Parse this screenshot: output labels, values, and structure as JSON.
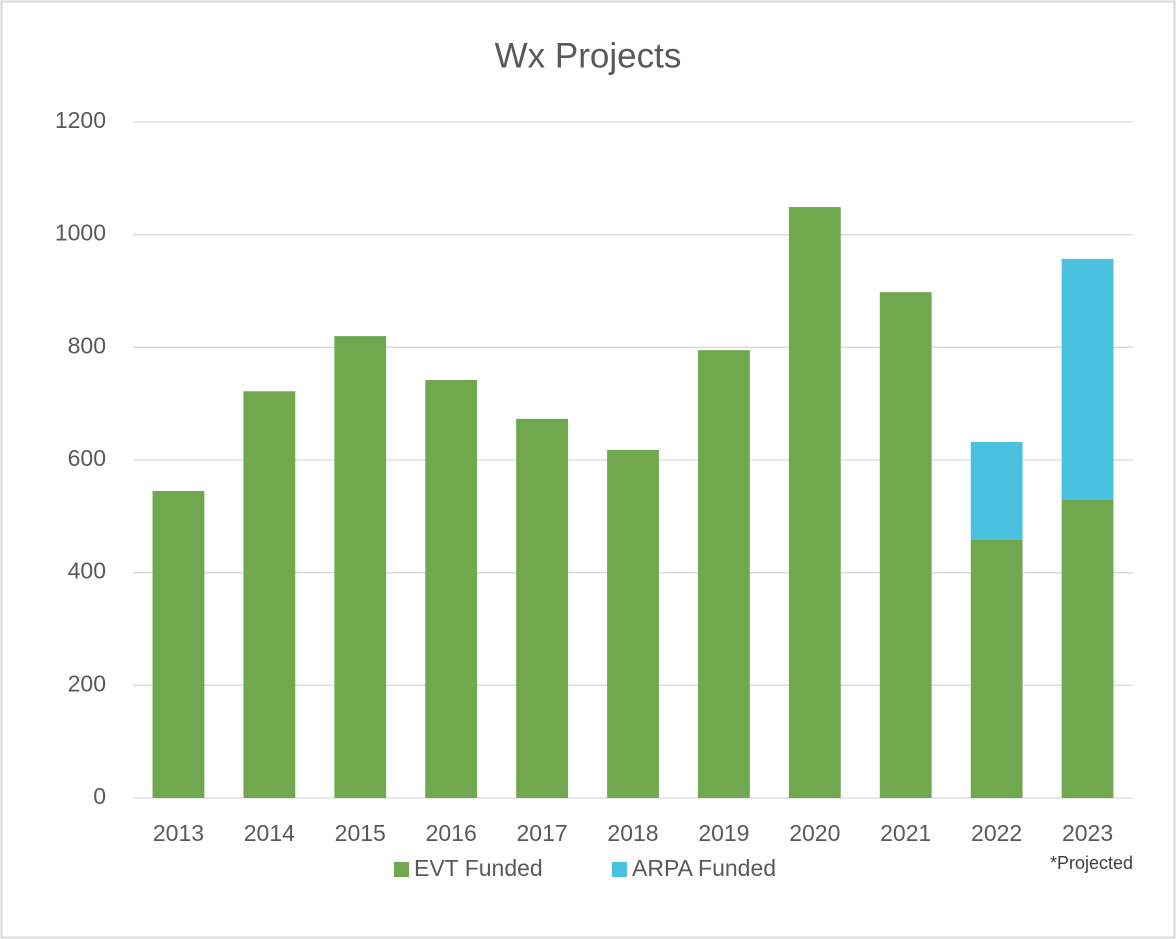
{
  "chart_data": {
    "type": "stacked_bar",
    "title": "Wx Projects",
    "categories": [
      "2013",
      "2014",
      "2015",
      "2016",
      "2017",
      "2018",
      "2019",
      "2020",
      "2021",
      "2022",
      "2023"
    ],
    "series": [
      {
        "name": "EVT Funded",
        "color": "#70a84f",
        "values": [
          545,
          722,
          820,
          742,
          673,
          618,
          795,
          1049,
          898,
          458,
          529
        ]
      },
      {
        "name": "ARPA Funded",
        "color": "#4bc1e0",
        "values": [
          0,
          0,
          0,
          0,
          0,
          0,
          0,
          0,
          0,
          174,
          428
        ]
      }
    ],
    "ylim": [
      0,
      1200
    ],
    "yticks": [
      0,
      200,
      400,
      600,
      800,
      1000,
      1200
    ],
    "grid": true,
    "annotation": "*Projected",
    "legend": "bottom"
  }
}
